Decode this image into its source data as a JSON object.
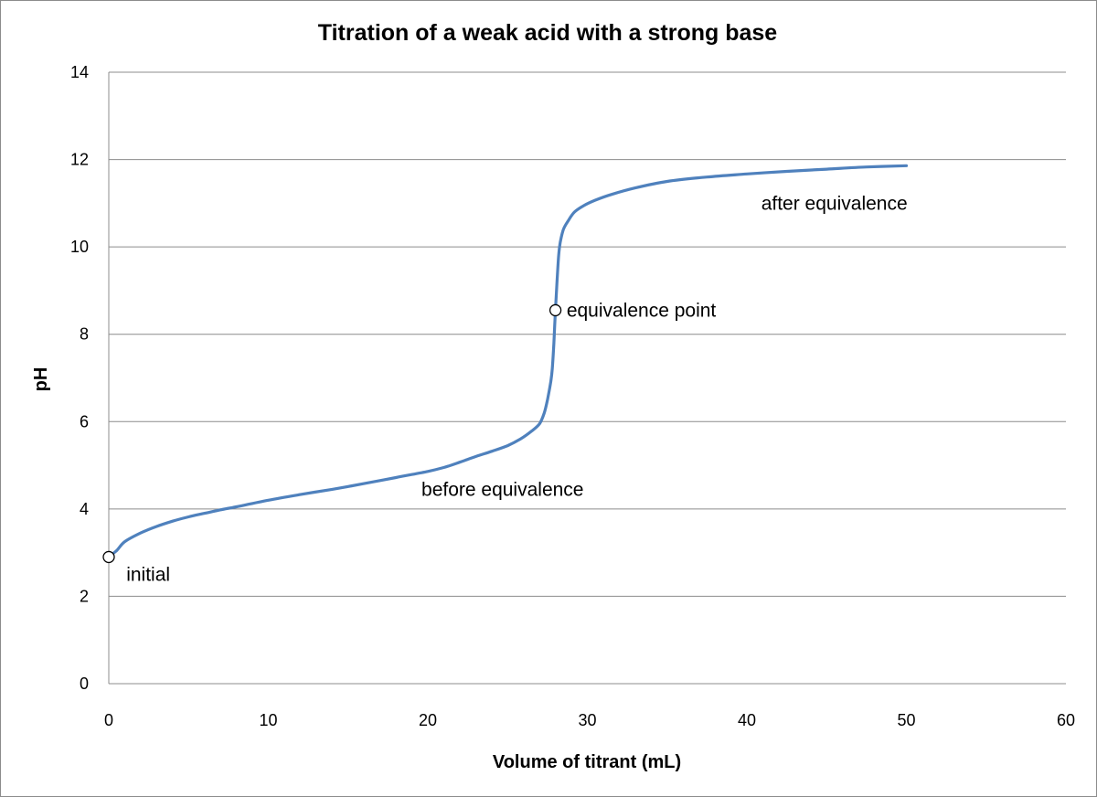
{
  "chart_data": {
    "type": "line",
    "title": "Titration of a weak acid with a strong base",
    "xlabel": "Volume of titrant (mL)",
    "ylabel": "pH",
    "xlim": [
      0,
      60
    ],
    "ylim": [
      0,
      14
    ],
    "x_ticks": [
      "0",
      "10",
      "20",
      "30",
      "40",
      "50",
      "60"
    ],
    "y_ticks": [
      "0",
      "2",
      "4",
      "6",
      "8",
      "10",
      "12",
      "14"
    ],
    "grid": "horizontal",
    "series_color": "#4f81bd",
    "series": [
      {
        "x": [
          0,
          0.5,
          1,
          2,
          3,
          4,
          5,
          6,
          7,
          8,
          10,
          12,
          14,
          16,
          18,
          20,
          21,
          22,
          23,
          24,
          25,
          25.8,
          26.5,
          27,
          27.3,
          27.5,
          27.7,
          27.8,
          27.9,
          28.0,
          28.1,
          28.2,
          28.3,
          28.5,
          28.8,
          29.2,
          29.8,
          30.5,
          31.5,
          33,
          35,
          37.5,
          40,
          42.5,
          45,
          47.5,
          50
        ],
        "y": [
          2.9,
          3.05,
          3.25,
          3.45,
          3.6,
          3.72,
          3.82,
          3.9,
          3.98,
          4.05,
          4.2,
          4.33,
          4.45,
          4.58,
          4.72,
          4.86,
          4.95,
          5.07,
          5.2,
          5.32,
          5.45,
          5.6,
          5.78,
          5.95,
          6.2,
          6.5,
          6.9,
          7.2,
          7.8,
          8.55,
          9.2,
          9.8,
          10.1,
          10.4,
          10.6,
          10.8,
          10.95,
          11.07,
          11.2,
          11.35,
          11.5,
          11.6,
          11.67,
          11.73,
          11.78,
          11.83,
          11.86
        ]
      }
    ],
    "markers": [
      {
        "x": 0,
        "y": 2.9
      },
      {
        "x": 28.0,
        "y": 8.55
      }
    ],
    "annotations": [
      {
        "text": "initial",
        "x": 1.1,
        "y": 2.5
      },
      {
        "text": "equivalence point",
        "x": 28.7,
        "y": 8.55
      },
      {
        "text": "before equivalence",
        "x": 19.6,
        "y": 4.45
      },
      {
        "text": "after equivalence",
        "x": 40.9,
        "y": 11.0
      }
    ]
  }
}
